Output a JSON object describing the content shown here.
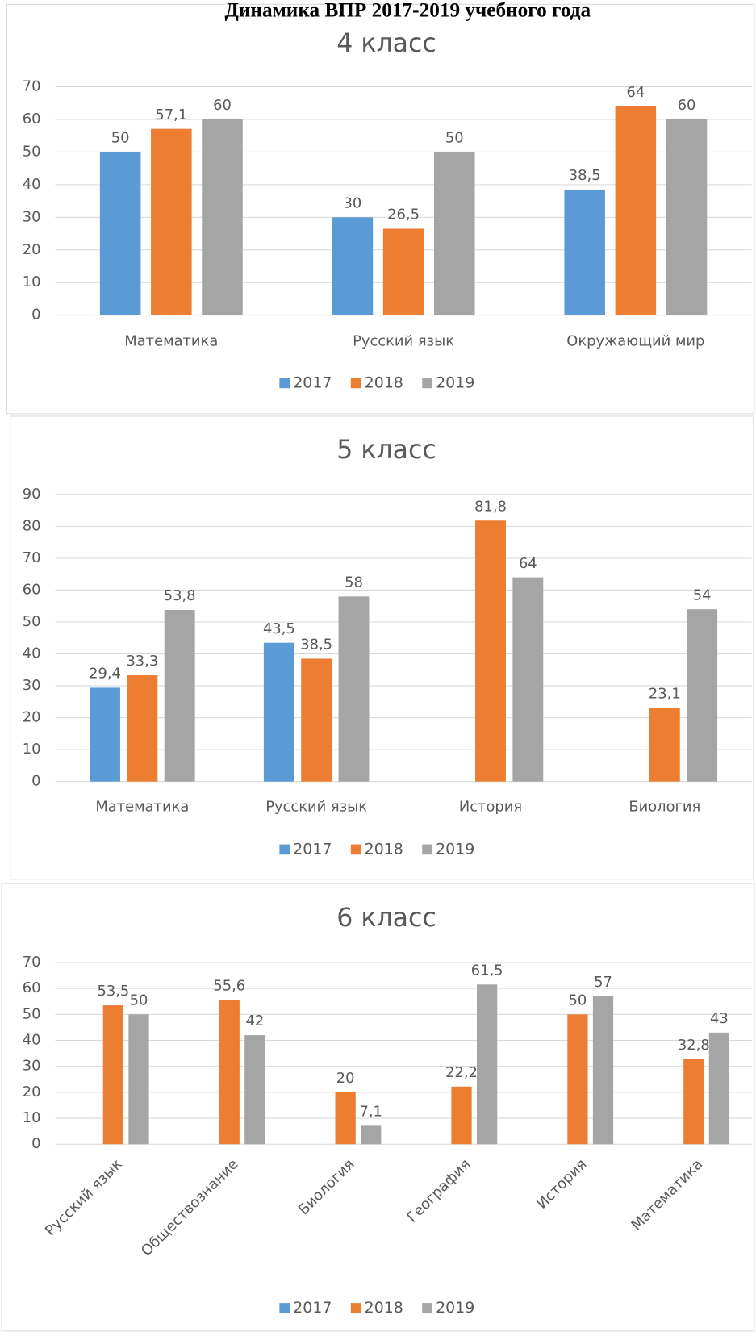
{
  "header": {
    "title": "Динамика ВПР 2017-2019 учебного года"
  },
  "chart_data": [
    {
      "type": "bar",
      "title": "4 класс",
      "categories": [
        "Математика",
        "Русский язык",
        "Окружающий мир"
      ],
      "series": [
        {
          "name": "2017",
          "color": "#5b9bd5",
          "values": [
            50,
            30,
            38.5
          ],
          "value_labels": [
            "50",
            "30",
            "38,5"
          ]
        },
        {
          "name": "2018",
          "color": "#ed7d31",
          "values": [
            57.1,
            26.5,
            64
          ],
          "value_labels": [
            "57,1",
            "26,5",
            "64"
          ]
        },
        {
          "name": "2019",
          "color": "#a5a5a5",
          "values": [
            60,
            50,
            60
          ],
          "value_labels": [
            "60",
            "50",
            "60"
          ]
        }
      ],
      "ylim": [
        0,
        70
      ],
      "yticks": [
        0,
        10,
        20,
        30,
        40,
        50,
        60,
        70
      ],
      "grid": true,
      "legend": "bottom"
    },
    {
      "type": "bar",
      "title": "5 класс",
      "categories": [
        "Математика",
        "Русский язык",
        "История",
        "Биология"
      ],
      "series": [
        {
          "name": "2017",
          "color": "#5b9bd5",
          "values": [
            29.4,
            43.5,
            null,
            null
          ],
          "value_labels": [
            "29,4",
            "43,5",
            null,
            null
          ]
        },
        {
          "name": "2018",
          "color": "#ed7d31",
          "values": [
            33.3,
            38.5,
            81.8,
            23.1
          ],
          "value_labels": [
            "33,3",
            "38,5",
            "81,8",
            "23,1"
          ]
        },
        {
          "name": "2019",
          "color": "#a5a5a5",
          "values": [
            53.8,
            58,
            64,
            54
          ],
          "value_labels": [
            "53,8",
            "58",
            "64",
            "54"
          ]
        }
      ],
      "ylim": [
        0,
        90
      ],
      "yticks": [
        0,
        10,
        20,
        30,
        40,
        50,
        60,
        70,
        80,
        90
      ],
      "grid": true,
      "legend": "bottom"
    },
    {
      "type": "bar",
      "title": "6 класс",
      "categories": [
        "Русский язык",
        "Обществознание",
        "Биология",
        "География",
        "История",
        "Математика"
      ],
      "series": [
        {
          "name": "2017",
          "color": "#5b9bd5",
          "values": [
            null,
            null,
            null,
            null,
            null,
            null
          ],
          "value_labels": [
            null,
            null,
            null,
            null,
            null,
            null
          ]
        },
        {
          "name": "2018",
          "color": "#ed7d31",
          "values": [
            53.5,
            55.6,
            20,
            22.2,
            50,
            32.8
          ],
          "value_labels": [
            "53,5",
            "55,6",
            "20",
            "22,2",
            "50",
            "32,8"
          ]
        },
        {
          "name": "2019",
          "color": "#a5a5a5",
          "values": [
            50,
            42,
            7.1,
            61.5,
            57,
            43
          ],
          "value_labels": [
            "50",
            "42",
            "7,1",
            "61,5",
            "57",
            "43"
          ]
        }
      ],
      "ylim": [
        0,
        70
      ],
      "yticks": [
        0,
        10,
        20,
        30,
        40,
        50,
        60,
        70
      ],
      "grid": true,
      "legend": "bottom"
    }
  ]
}
